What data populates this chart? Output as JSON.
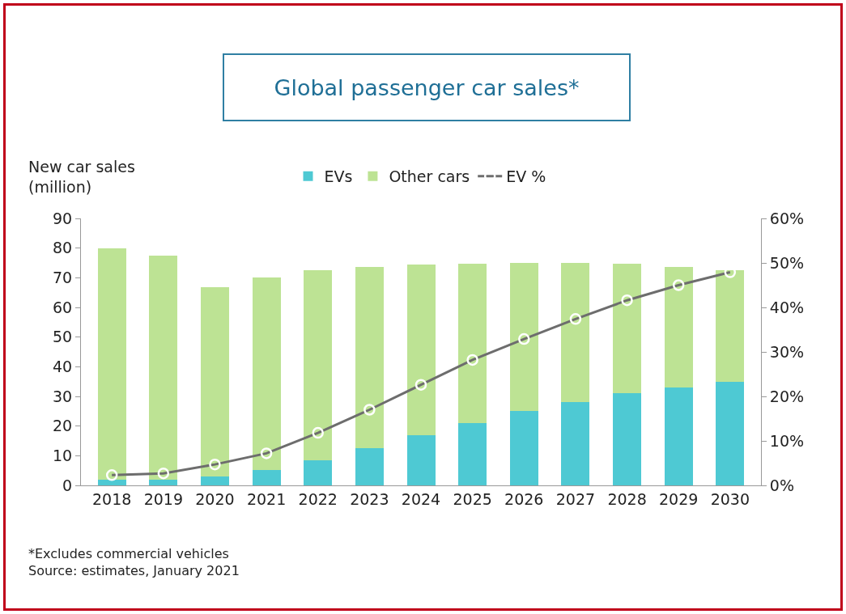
{
  "chart_data": {
    "type": "bar",
    "title": "Global passenger car sales*",
    "ylabel": "New car sales\n(million)",
    "categories": [
      "2018",
      "2019",
      "2020",
      "2021",
      "2022",
      "2023",
      "2024",
      "2025",
      "2026",
      "2027",
      "2028",
      "2029",
      "2030"
    ],
    "stacked": true,
    "series": [
      {
        "name": "EVs",
        "color": "#4ec9d3",
        "values": [
          2,
          2,
          3,
          5.1,
          8.4,
          12.5,
          16.8,
          21.1,
          25,
          28.2,
          31,
          33,
          35
        ]
      },
      {
        "name": "Other cars",
        "color": "#bde394",
        "values": [
          78,
          75.5,
          63.7,
          64.9,
          64.2,
          61.2,
          57.7,
          53.7,
          50,
          46.8,
          43.8,
          40.7,
          37.6
        ]
      },
      {
        "name": "EV %",
        "type": "line",
        "axis": "y2",
        "color": "#6d6d6d",
        "marker": "circle",
        "line_style": "solid",
        "values": [
          2.3,
          2.7,
          4.7,
          7.2,
          11.8,
          17,
          22.6,
          28.2,
          32.9,
          37.4,
          41.6,
          45,
          47.9
        ]
      }
    ],
    "ylim": [
      0,
      90
    ],
    "yticks": [
      0,
      10,
      20,
      30,
      40,
      50,
      60,
      70,
      80,
      90
    ],
    "y2lim": [
      0,
      60
    ],
    "y2ticks": [
      {
        "value": 0,
        "label": "0%"
      },
      {
        "value": 10,
        "label": "10%"
      },
      {
        "value": 20,
        "label": "20%"
      },
      {
        "value": 30,
        "label": "30%"
      },
      {
        "value": 40,
        "label": "40%"
      },
      {
        "value": 50,
        "label": "50%"
      },
      {
        "value": 60,
        "label": "60%"
      }
    ],
    "grid": false,
    "legend": "top",
    "annotations": [
      "*Excludes commercial vehicles",
      "Source: estimates, January 2021"
    ]
  }
}
